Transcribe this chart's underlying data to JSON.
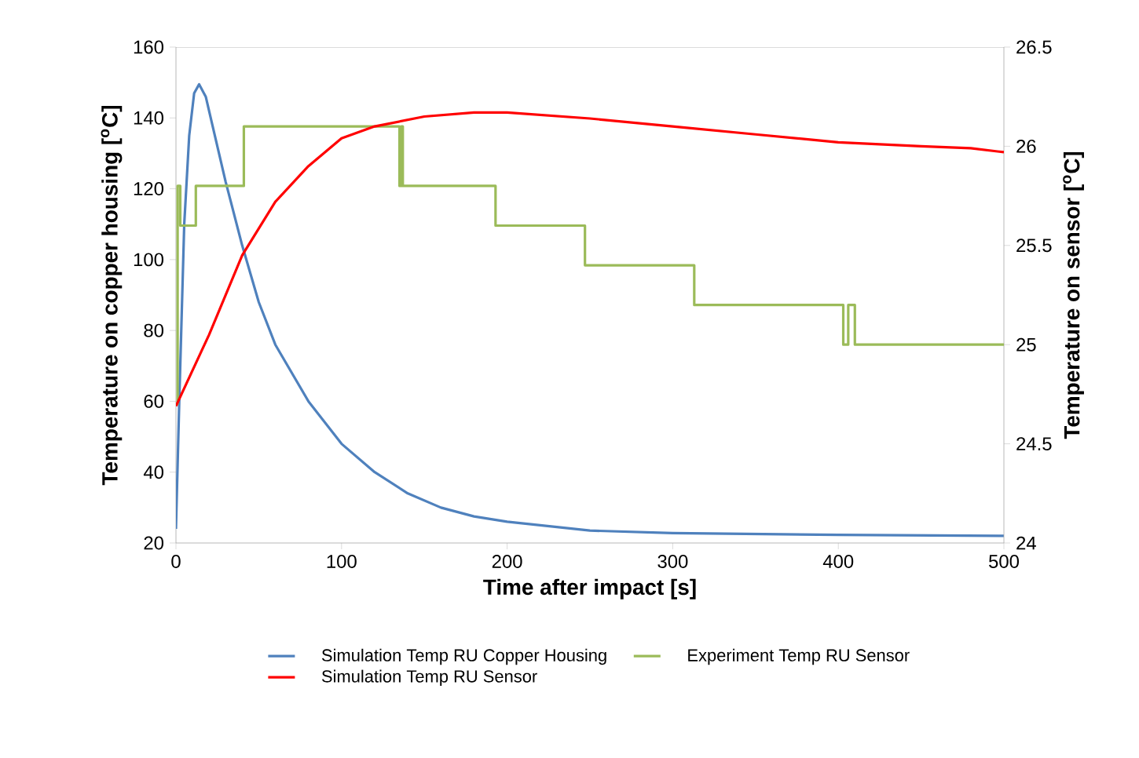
{
  "chart_data": {
    "type": "line",
    "xlabel": "Time after impact [s]",
    "ylabel": "Temperature on copper housing [$^{o}$C]",
    "y2label": "Temperature on sensor [$^{o}$C]",
    "xlim": [
      0,
      500
    ],
    "xticks": [
      0,
      100,
      200,
      300,
      400,
      500
    ],
    "ylim": [
      20,
      160
    ],
    "yticks": [
      20,
      40,
      60,
      80,
      100,
      120,
      140,
      160
    ],
    "y2lim": [
      24,
      26.5
    ],
    "y2ticks": [
      24,
      24.5,
      25,
      25.5,
      26,
      26.5
    ],
    "legend": "bottom",
    "grid": false,
    "marker": "none",
    "line_style": "solid",
    "series": [
      {
        "name": "Simulation Temp RU Copper Housing",
        "color": "#4f81bd",
        "x": [
          0,
          2,
          5,
          8,
          11,
          14,
          18,
          22,
          30,
          40,
          50,
          60,
          80,
          100,
          120,
          140,
          160,
          180,
          200,
          250,
          300,
          400,
          500
        ],
        "values": [
          24,
          60,
          110,
          135,
          147,
          149.5,
          146,
          138,
          122,
          104,
          88,
          76,
          60,
          48,
          40,
          34,
          30,
          27.5,
          26,
          23.5,
          22.8,
          22.3,
          22
        ]
      },
      {
        "name": "Experiment Temp RU Sensor",
        "type": "step",
        "axis": "y2",
        "color": "#9bbb59",
        "x": [
          0,
          1,
          2.6,
          12,
          41,
          135,
          136,
          137,
          193,
          247,
          313,
          403,
          406,
          410,
          500
        ],
        "values": [
          24.7,
          25.8,
          25.6,
          25.8,
          26.1,
          25.8,
          26.1,
          25.8,
          25.6,
          25.4,
          25.2,
          25.0,
          25.2,
          25.0,
          25.0
        ]
      },
      {
        "name": "Simulation Temp RU Sensor",
        "axis": "y2",
        "color": "#ff0000",
        "x": [
          0,
          20,
          40,
          60,
          80,
          100,
          120,
          150,
          180,
          200,
          250,
          300,
          350,
          400,
          450,
          480,
          500
        ],
        "values": [
          24.69,
          25.05,
          25.45,
          25.72,
          25.9,
          26.04,
          26.1,
          26.15,
          26.17,
          26.17,
          26.14,
          26.1,
          26.06,
          26.02,
          26.0,
          25.99,
          25.97
        ]
      }
    ]
  }
}
